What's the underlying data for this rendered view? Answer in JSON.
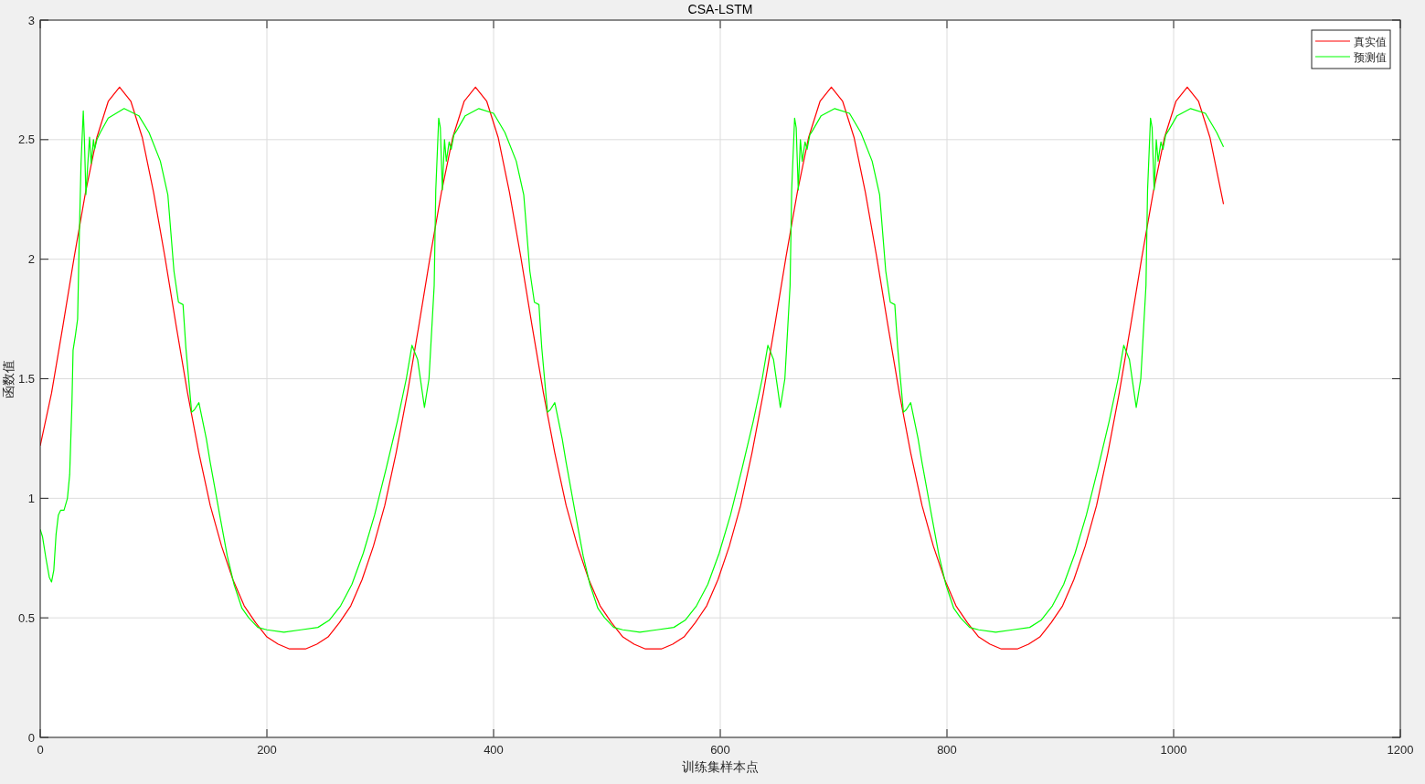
{
  "chart_data": {
    "type": "line",
    "title": "CSA-LSTM",
    "xlabel": "训练集样本点",
    "ylabel": "函数值",
    "xlim": [
      0,
      1200
    ],
    "ylim": [
      0,
      3
    ],
    "xticks": [
      0,
      200,
      400,
      600,
      800,
      1000,
      1200
    ],
    "yticks": [
      0,
      0.5,
      1,
      1.5,
      2,
      2.5,
      3
    ],
    "grid": true,
    "legend": "top right",
    "series": [
      {
        "name": "真实值",
        "color": "#ff0000",
        "x": [
          0,
          10,
          20,
          30,
          40,
          50,
          60,
          70,
          80,
          90,
          100,
          110,
          120,
          130,
          140,
          150,
          160,
          170,
          180,
          190,
          200,
          210,
          220,
          227,
          234,
          244,
          254,
          264,
          274,
          284,
          294,
          304,
          314,
          324,
          334,
          344,
          354,
          364,
          374,
          384,
          394,
          404,
          414,
          424,
          434,
          444,
          454,
          464,
          474,
          484,
          494,
          504,
          514,
          524,
          534,
          541,
          548,
          558,
          568,
          578,
          588,
          598,
          608,
          618,
          628,
          638,
          648,
          658,
          668,
          678,
          688,
          698,
          708,
          718,
          728,
          738,
          748,
          758,
          768,
          778,
          788,
          798,
          808,
          818,
          828,
          838,
          848,
          855,
          862,
          872,
          882,
          892,
          902,
          912,
          922,
          932,
          942,
          952,
          962,
          972,
          982,
          992,
          1002,
          1012,
          1022,
          1032,
          1044
        ],
        "values": [
          1.22,
          1.44,
          1.72,
          2.01,
          2.28,
          2.51,
          2.66,
          2.72,
          2.66,
          2.51,
          2.28,
          2.01,
          1.72,
          1.44,
          1.19,
          0.97,
          0.8,
          0.66,
          0.55,
          0.48,
          0.42,
          0.39,
          0.37,
          0.37,
          0.37,
          0.39,
          0.42,
          0.48,
          0.55,
          0.66,
          0.8,
          0.97,
          1.19,
          1.44,
          1.72,
          2.01,
          2.28,
          2.51,
          2.66,
          2.72,
          2.66,
          2.51,
          2.28,
          2.01,
          1.72,
          1.44,
          1.19,
          0.97,
          0.8,
          0.66,
          0.55,
          0.48,
          0.42,
          0.39,
          0.37,
          0.37,
          0.37,
          0.39,
          0.42,
          0.48,
          0.55,
          0.66,
          0.8,
          0.97,
          1.19,
          1.44,
          1.72,
          2.01,
          2.28,
          2.51,
          2.66,
          2.72,
          2.66,
          2.51,
          2.28,
          2.01,
          1.72,
          1.44,
          1.19,
          0.97,
          0.8,
          0.66,
          0.55,
          0.48,
          0.42,
          0.39,
          0.37,
          0.37,
          0.37,
          0.39,
          0.42,
          0.48,
          0.55,
          0.66,
          0.8,
          0.97,
          1.19,
          1.44,
          1.72,
          2.01,
          2.28,
          2.51,
          2.66,
          2.72,
          2.66,
          2.51,
          2.23
        ]
      },
      {
        "name": "预测值",
        "color": "#00ff00",
        "x": [
          0,
          2,
          5,
          8,
          10,
          12,
          14,
          16,
          18,
          21,
          24,
          26,
          28,
          29,
          31,
          33,
          34.5,
          36,
          38,
          39,
          40.3,
          42,
          43.5,
          45,
          47,
          48,
          50,
          53,
          60,
          74,
          87,
          96,
          106,
          112.6,
          118,
          122,
          126,
          128.5,
          133.6,
          136,
          140,
          146.5,
          150,
          158,
          165,
          171,
          178,
          184,
          192,
          200,
          215,
          230,
          245,
          255,
          265,
          275,
          285,
          295,
          305,
          315,
          323,
          328,
          333,
          339,
          343,
          347.6,
          349,
          351.6,
          353,
          354.8,
          356.7,
          358.3,
          360.8,
          362.6,
          365,
          367.7,
          375,
          387,
          400,
          410,
          420,
          426.6,
          432,
          436,
          440,
          442.5,
          447.6,
          450,
          454,
          460.5,
          464,
          472,
          479,
          485,
          492,
          498,
          506,
          514,
          529,
          544,
          559,
          569,
          579,
          589,
          599,
          609,
          619,
          629,
          637,
          642,
          647,
          653,
          657,
          661.6,
          663,
          665.6,
          667,
          668.8,
          670.7,
          672.3,
          674.8,
          676.6,
          679,
          681.7,
          689,
          701,
          714,
          724,
          734,
          740.6,
          746,
          750,
          754,
          756.5,
          761.6,
          764,
          768,
          774.5,
          778,
          786,
          793,
          799,
          806,
          812,
          820,
          828,
          843,
          858,
          873,
          883,
          893,
          903,
          913,
          923,
          933,
          943,
          951,
          956,
          961,
          967,
          971,
          975.6,
          977,
          979.6,
          981,
          982.8,
          984.7,
          986.3,
          988.8,
          990.6,
          993,
          995.7,
          1003,
          1015,
          1028,
          1038,
          1044
        ],
        "values": [
          0.87,
          0.84,
          0.75,
          0.67,
          0.65,
          0.7,
          0.85,
          0.93,
          0.95,
          0.95,
          1.0,
          1.1,
          1.4,
          1.62,
          1.68,
          1.75,
          2.1,
          2.4,
          2.62,
          2.5,
          2.27,
          2.4,
          2.51,
          2.4,
          2.5,
          2.46,
          2.5,
          2.53,
          2.59,
          2.63,
          2.6,
          2.53,
          2.41,
          2.27,
          1.95,
          1.82,
          1.81,
          1.63,
          1.36,
          1.37,
          1.4,
          1.25,
          1.15,
          0.94,
          0.76,
          0.64,
          0.54,
          0.5,
          0.46,
          0.45,
          0.44,
          0.45,
          0.46,
          0.49,
          0.55,
          0.64,
          0.77,
          0.93,
          1.12,
          1.32,
          1.5,
          1.64,
          1.58,
          1.38,
          1.5,
          1.89,
          2.29,
          2.59,
          2.55,
          2.29,
          2.5,
          2.41,
          2.49,
          2.46,
          2.52,
          2.54,
          2.6,
          2.63,
          2.61,
          2.53,
          2.41,
          2.27,
          1.95,
          1.82,
          1.81,
          1.63,
          1.36,
          1.37,
          1.4,
          1.25,
          1.15,
          0.94,
          0.76,
          0.64,
          0.54,
          0.5,
          0.46,
          0.45,
          0.44,
          0.45,
          0.46,
          0.49,
          0.55,
          0.64,
          0.77,
          0.93,
          1.12,
          1.32,
          1.5,
          1.64,
          1.58,
          1.38,
          1.5,
          1.89,
          2.29,
          2.59,
          2.55,
          2.29,
          2.5,
          2.41,
          2.49,
          2.46,
          2.52,
          2.54,
          2.6,
          2.63,
          2.61,
          2.53,
          2.41,
          2.27,
          1.95,
          1.82,
          1.81,
          1.63,
          1.36,
          1.37,
          1.4,
          1.25,
          1.15,
          0.94,
          0.76,
          0.64,
          0.54,
          0.5,
          0.46,
          0.45,
          0.44,
          0.45,
          0.46,
          0.49,
          0.55,
          0.64,
          0.77,
          0.93,
          1.12,
          1.32,
          1.5,
          1.64,
          1.58,
          1.38,
          1.5,
          1.89,
          2.29,
          2.59,
          2.55,
          2.29,
          2.5,
          2.41,
          2.49,
          2.46,
          2.52,
          2.54,
          2.6,
          2.63,
          2.61,
          2.53,
          2.47
        ]
      }
    ]
  }
}
